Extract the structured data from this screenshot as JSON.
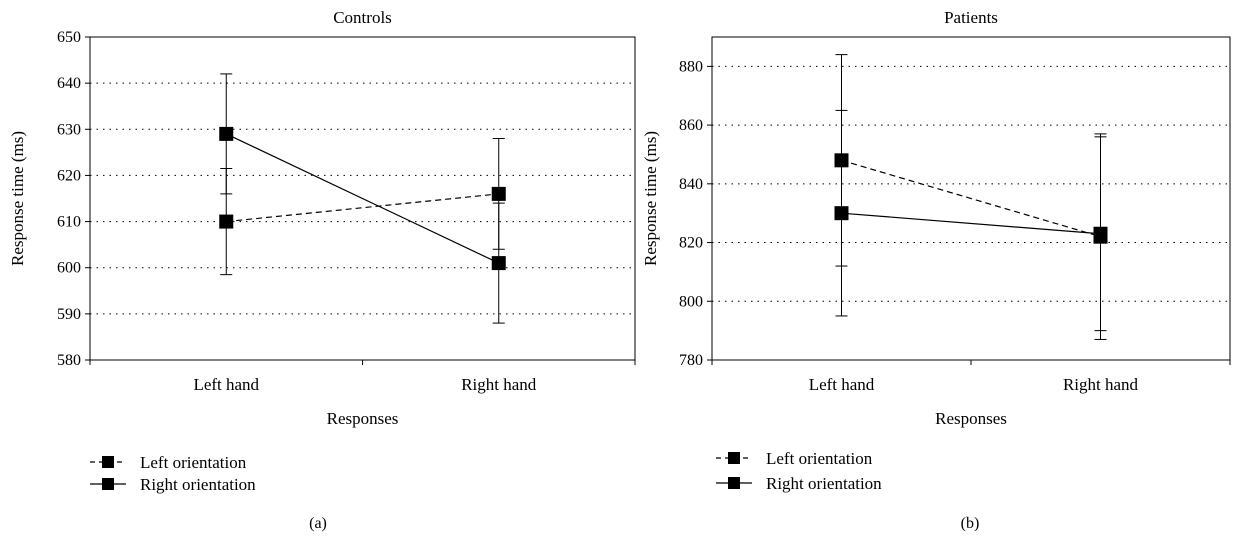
{
  "panels": [
    {
      "label": "(a)",
      "chart_data": {
        "type": "line",
        "title": "Controls",
        "xlabel": "Responses",
        "ylabel": "Response time (ms)",
        "categories": [
          "Left hand",
          "Right hand"
        ],
        "ylim": [
          580,
          650
        ],
        "yticks": [
          580,
          590,
          600,
          610,
          620,
          630,
          640,
          650
        ],
        "grid": "horizontal-dotted",
        "legend_position": "bottom-left",
        "series": [
          {
            "name": "Left orientation",
            "style": "dashed",
            "values": [
              610,
              616
            ],
            "err_low": [
              598.5,
              604
            ],
            "err_high": [
              621.5,
              628
            ]
          },
          {
            "name": "Right orientation",
            "style": "solid",
            "values": [
              629,
              601
            ],
            "err_low": [
              616,
              588
            ],
            "err_high": [
              642,
              614
            ]
          }
        ]
      }
    },
    {
      "label": "(b)",
      "chart_data": {
        "type": "line",
        "title": "Patients",
        "xlabel": "Responses",
        "ylabel": "Response time (ms)",
        "categories": [
          "Left hand",
          "Right hand"
        ],
        "ylim": [
          780,
          890
        ],
        "yticks": [
          780,
          800,
          820,
          840,
          860,
          880
        ],
        "grid": "horizontal-dotted",
        "legend_position": "bottom-left",
        "series": [
          {
            "name": "Left orientation",
            "style": "dashed",
            "values": [
              848,
              822
            ],
            "err_low": [
              812,
              787
            ],
            "err_high": [
              884,
              857
            ]
          },
          {
            "name": "Right orientation",
            "style": "solid",
            "values": [
              830,
              823
            ],
            "err_low": [
              795,
              790
            ],
            "err_high": [
              865,
              856
            ]
          }
        ]
      }
    }
  ],
  "colors": {
    "ink": "#000000",
    "background": "#ffffff"
  }
}
